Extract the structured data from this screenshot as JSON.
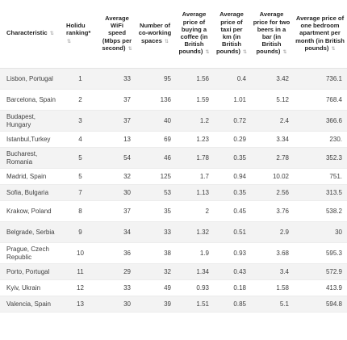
{
  "table": {
    "headers": [
      "Characteristic",
      "Holidu ranking*",
      "Average WiFi speed (Mbps per second)",
      "Number of co-working spaces",
      "Average price of buying a coffee (in British pounds)",
      "Average price of taxi per km (in British pounds)",
      "Average price for two beers in a bar (in British pounds)",
      "Average price of one bedroom apartment per month (in British pounds)"
    ],
    "sort_icon": "⇅",
    "rows": [
      [
        "Lisbon, Portugal",
        "1",
        "33",
        "95",
        "1.56",
        "0.4",
        "3.42",
        "736.1"
      ],
      [
        "Barcelona, Spain",
        "2",
        "37",
        "136",
        "1.59",
        "1.01",
        "5.12",
        "768.4"
      ],
      [
        "Budapest, Hungary",
        "3",
        "37",
        "40",
        "1.2",
        "0.72",
        "2.4",
        "366.6"
      ],
      [
        "Istanbul,Turkey",
        "4",
        "13",
        "69",
        "1.23",
        "0.29",
        "3.34",
        "230."
      ],
      [
        "Bucharest, Romania",
        "5",
        "54",
        "46",
        "1.78",
        "0.35",
        "2.78",
        "352.3"
      ],
      [
        "Madrid, Spain",
        "5",
        "32",
        "125",
        "1.7",
        "0.94",
        "10.02",
        "751."
      ],
      [
        "Sofia, Bulgaria",
        "7",
        "30",
        "53",
        "1.13",
        "0.35",
        "2.56",
        "313.5"
      ],
      [
        "Krakow, Poland",
        "8",
        "37",
        "35",
        "2",
        "0.45",
        "3.76",
        "538.2"
      ],
      [
        "Belgrade, Serbia",
        "9",
        "34",
        "33",
        "1.32",
        "0.51",
        "2.9",
        "30"
      ],
      [
        "Prague, Czech Republic",
        "10",
        "36",
        "38",
        "1.9",
        "0.93",
        "3.68",
        "595.3"
      ],
      [
        "Porto, Portugal",
        "11",
        "29",
        "32",
        "1.34",
        "0.43",
        "3.4",
        "572.9"
      ],
      [
        "Kyiv, Ukrain",
        "12",
        "33",
        "49",
        "0.93",
        "0.18",
        "1.58",
        "413.9"
      ],
      [
        "Valencia, Spain",
        "13",
        "30",
        "39",
        "1.51",
        "0.85",
        "5.1",
        "594.8"
      ]
    ]
  }
}
